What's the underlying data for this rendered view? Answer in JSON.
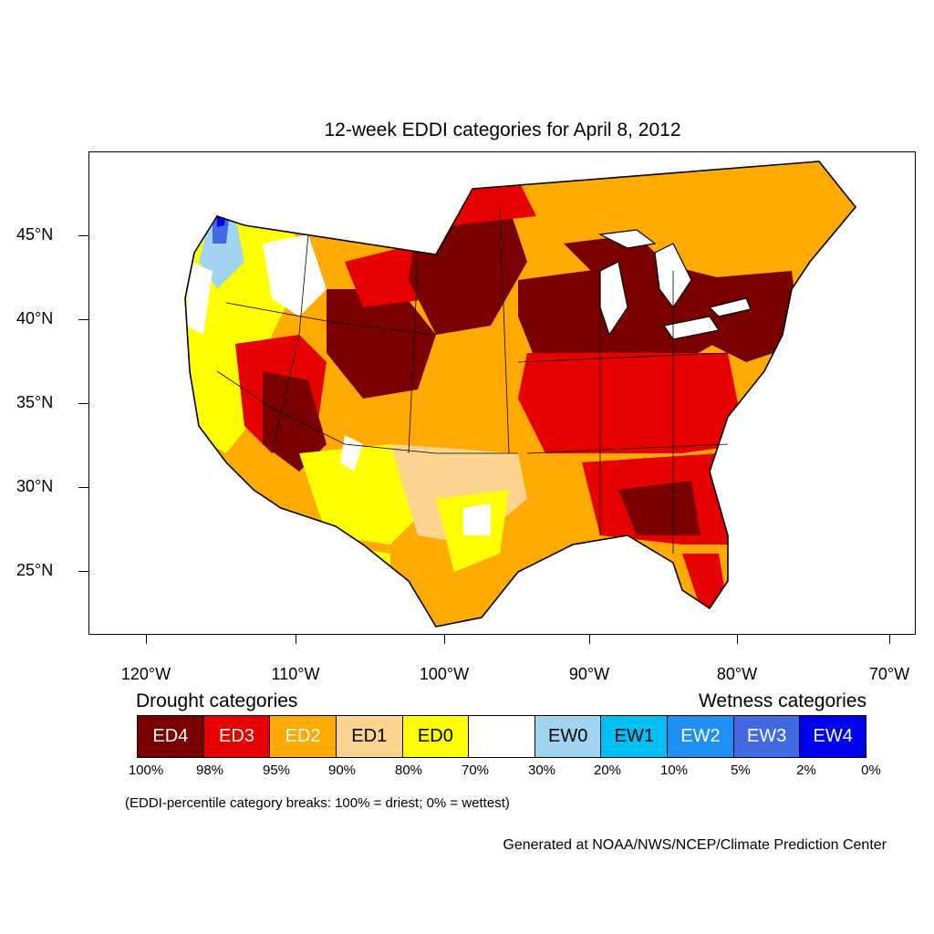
{
  "title": "12-week EDDI categories for April 8, 2012",
  "lat_labels": [
    "45°N",
    "40°N",
    "35°N",
    "30°N",
    "25°N"
  ],
  "lon_labels": [
    "120°W",
    "110°W",
    "100°W",
    "90°W",
    "80°W",
    "70°W"
  ],
  "legend": {
    "drought_heading": "Drought categories",
    "wetness_heading": "Wetness categories",
    "categories": [
      {
        "label": "ED4",
        "color": "#7a0000",
        "text_color": "#ffffff"
      },
      {
        "label": "ED3",
        "color": "#e60000",
        "text_color": "#ffffff"
      },
      {
        "label": "ED2",
        "color": "#ffaa00",
        "text_color": "#ffffff"
      },
      {
        "label": "ED1",
        "color": "#fcd38f",
        "text_color": "#000000"
      },
      {
        "label": "ED0",
        "color": "#ffff00",
        "text_color": "#000000"
      },
      {
        "label": "",
        "color": "#ffffff",
        "text_color": "#000000"
      },
      {
        "label": "EW0",
        "color": "#a0d4f0",
        "text_color": "#000000"
      },
      {
        "label": "EW1",
        "color": "#00bff5",
        "text_color": "#000000"
      },
      {
        "label": "EW2",
        "color": "#1e90f5",
        "text_color": "#ffffff"
      },
      {
        "label": "EW3",
        "color": "#4169e1",
        "text_color": "#ffffff"
      },
      {
        "label": "EW4",
        "color": "#0000f0",
        "text_color": "#ffffff"
      }
    ],
    "percentile_labels": [
      "100%",
      "98%",
      "95%",
      "90%",
      "80%",
      "70%",
      "30%",
      "20%",
      "10%",
      "5%",
      "2%",
      "0%"
    ]
  },
  "note": "(EDDI-percentile category breaks: 100% = driest; 0% = wettest)",
  "credit": "Generated at NOAA/NWS/NCEP/Climate Prediction Center"
}
